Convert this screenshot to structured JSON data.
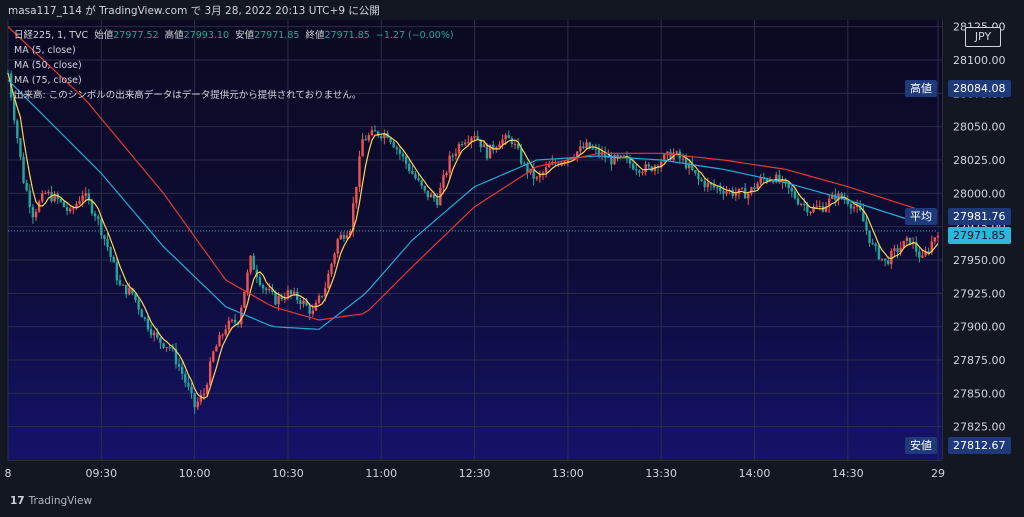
{
  "header": {
    "text": "masa117_114 が TradingView.com で 3月 28, 2022 20:13 UTC+9 に公開"
  },
  "legend": {
    "symbol": "日経225, 1, TVC",
    "open_label": "始値",
    "open": "27977.52",
    "high_label": "高値",
    "high": "27993.10",
    "low_label": "安値",
    "low": "27971.85",
    "close_label": "終値",
    "close": "27971.85",
    "change": "−1.27 (−0.00%)",
    "ma1": "MA (5, close)",
    "ma2": "MA (50, close)",
    "ma3": "MA (75, close)",
    "volume_note": "出来高: このシンボルの出来高データはデータ提供元から提供されておりません。"
  },
  "currency": "JPY",
  "price_tags": {
    "high_label": "高値",
    "high_value": "28084.08",
    "avg_label": "平均",
    "avg_value": "27981.76",
    "current_value": "27971.85",
    "low_label": "安値",
    "low_value": "27812.67"
  },
  "footer": {
    "brand": "TradingView"
  },
  "colors": {
    "up": "#ef5350",
    "down": "#26a69a",
    "ma5": "#ffd54f",
    "ma50": "#26a9d6",
    "ma75": "#e53935",
    "current": "#2ab7d9"
  },
  "chart_data": {
    "type": "candlestick",
    "xlabel": "",
    "ylabel": "",
    "ylim": [
      27800,
      28130
    ],
    "y_ticks": [
      "28125.00",
      "28100.00",
      "28075.00",
      "28050.00",
      "28025.00",
      "28000.00",
      "27975.00",
      "27950.00",
      "27925.00",
      "27900.00",
      "27875.00",
      "27850.00",
      "27825.00"
    ],
    "x_ticks": [
      "8",
      "09:30",
      "10:00",
      "10:30",
      "11:00",
      "12:30",
      "13:00",
      "13:30",
      "14:00",
      "14:30",
      "29"
    ],
    "x_tick_positions": [
      0,
      30,
      60,
      90,
      120,
      150,
      180,
      210,
      240,
      270,
      299
    ],
    "price_path": [
      [
        0,
        28090
      ],
      [
        5,
        28010
      ],
      [
        8,
        27985
      ],
      [
        12,
        28000
      ],
      [
        16,
        27995
      ],
      [
        20,
        27985
      ],
      [
        24,
        28000
      ],
      [
        28,
        27985
      ],
      [
        32,
        27960
      ],
      [
        36,
        27930
      ],
      [
        40,
        27925
      ],
      [
        44,
        27905
      ],
      [
        48,
        27890
      ],
      [
        52,
        27885
      ],
      [
        56,
        27865
      ],
      [
        60,
        27840
      ],
      [
        63,
        27850
      ],
      [
        66,
        27880
      ],
      [
        70,
        27900
      ],
      [
        74,
        27905
      ],
      [
        78,
        27950
      ],
      [
        82,
        27930
      ],
      [
        86,
        27920
      ],
      [
        90,
        27925
      ],
      [
        94,
        27920
      ],
      [
        98,
        27910
      ],
      [
        102,
        27930
      ],
      [
        106,
        27965
      ],
      [
        110,
        27975
      ],
      [
        114,
        28040
      ],
      [
        118,
        28045
      ],
      [
        122,
        28045
      ],
      [
        126,
        28030
      ],
      [
        130,
        28015
      ],
      [
        134,
        28000
      ],
      [
        138,
        27995
      ],
      [
        142,
        28025
      ],
      [
        146,
        28040
      ],
      [
        150,
        28045
      ],
      [
        154,
        28030
      ],
      [
        158,
        28040
      ],
      [
        162,
        28040
      ],
      [
        166,
        28020
      ],
      [
        170,
        28010
      ],
      [
        174,
        28020
      ],
      [
        178,
        28025
      ],
      [
        182,
        28030
      ],
      [
        186,
        28035
      ],
      [
        190,
        28030
      ],
      [
        194,
        28025
      ],
      [
        198,
        28025
      ],
      [
        202,
        28020
      ],
      [
        206,
        28018
      ],
      [
        210,
        28025
      ],
      [
        214,
        28030
      ],
      [
        218,
        28022
      ],
      [
        222,
        28010
      ],
      [
        226,
        28005
      ],
      [
        230,
        28003
      ],
      [
        234,
        28000
      ],
      [
        238,
        28000
      ],
      [
        242,
        28010
      ],
      [
        246,
        28012
      ],
      [
        250,
        28005
      ],
      [
        254,
        27995
      ],
      [
        258,
        27988
      ],
      [
        262,
        27990
      ],
      [
        266,
        27998
      ],
      [
        270,
        27995
      ],
      [
        274,
        27985
      ],
      [
        278,
        27960
      ],
      [
        282,
        27948
      ],
      [
        286,
        27958
      ],
      [
        290,
        27965
      ],
      [
        294,
        27950
      ],
      [
        298,
        27968
      ],
      [
        299,
        27972
      ]
    ],
    "ma50_path": [
      [
        0,
        28085
      ],
      [
        30,
        28015
      ],
      [
        50,
        27960
      ],
      [
        70,
        27915
      ],
      [
        85,
        27900
      ],
      [
        100,
        27898
      ],
      [
        115,
        27925
      ],
      [
        130,
        27965
      ],
      [
        150,
        28005
      ],
      [
        170,
        28025
      ],
      [
        190,
        28028
      ],
      [
        210,
        28025
      ],
      [
        230,
        28018
      ],
      [
        250,
        28008
      ],
      [
        270,
        27995
      ],
      [
        290,
        27980
      ],
      [
        299,
        27976
      ]
    ],
    "ma75_path": [
      [
        0,
        28125
      ],
      [
        25,
        28070
      ],
      [
        50,
        28000
      ],
      [
        70,
        27935
      ],
      [
        85,
        27915
      ],
      [
        100,
        27905
      ],
      [
        115,
        27910
      ],
      [
        130,
        27945
      ],
      [
        150,
        27990
      ],
      [
        170,
        28020
      ],
      [
        190,
        28030
      ],
      [
        210,
        28030
      ],
      [
        230,
        28025
      ],
      [
        250,
        28018
      ],
      [
        270,
        28005
      ],
      [
        290,
        27990
      ],
      [
        299,
        27983
      ]
    ],
    "high": 28084.08,
    "avg": 27981.76,
    "current": 27971.85,
    "low": 27812.67
  }
}
